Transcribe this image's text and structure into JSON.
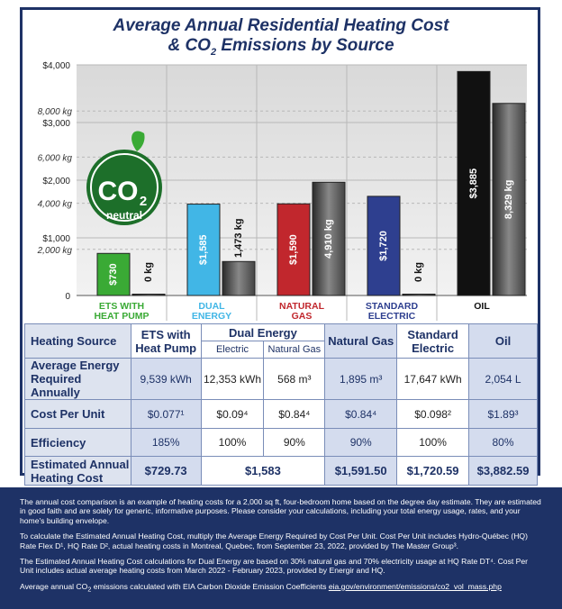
{
  "title": {
    "line1": "Average Annual Residential Heating Cost",
    "line2_prefix": "& CO",
    "line2_sub": "2",
    "line2_suffix": " Emissions by Source"
  },
  "badge": {
    "main": "CO",
    "sub": "2",
    "word": "neutral"
  },
  "colors": {
    "navy": "#1e3266",
    "ets": "#3aaa35",
    "dual": "#41b6e6",
    "gas": "#c1272d",
    "electric": "#2e3f8f",
    "oil": "#111111",
    "emissions": "#555555"
  },
  "chart_data": {
    "type": "bar",
    "title": "Average Annual Residential Heating Cost & CO2 Emissions by Source",
    "left_axis": {
      "ticks": [
        "$4,000",
        "$3,000",
        "$2,000",
        "$1,000",
        "0"
      ],
      "range": [
        0,
        4000
      ],
      "unit": "$"
    },
    "right_axis": {
      "ticks": [
        "8,000 kg",
        "6,000 kg",
        "4,000 kg",
        "2,000 kg"
      ],
      "range": [
        0,
        10000
      ],
      "unit": "kg"
    },
    "categories": [
      {
        "line1": "ETS WITH",
        "line2": "HEAT PUMP",
        "color": "#3aaa35"
      },
      {
        "line1": "DUAL",
        "line2": "ENERGY",
        "color": "#41b6e6"
      },
      {
        "line1": "NATURAL",
        "line2": "GAS",
        "color": "#c1272d"
      },
      {
        "line1": "STANDARD",
        "line2": "ELECTRIC",
        "color": "#2e3f8f"
      },
      {
        "line1": "OIL",
        "line2": "",
        "color": "#111111"
      }
    ],
    "series": [
      {
        "name": "Heating cost",
        "values": [
          730,
          1585,
          1590,
          1720,
          3885
        ],
        "labels": [
          "$730",
          "$1,585",
          "$1,590",
          "$1,720",
          "$3,885"
        ]
      },
      {
        "name": "CO2 emissions",
        "values": [
          0,
          1473,
          4910,
          0,
          8329
        ],
        "labels": [
          "0 kg",
          "1,473 kg",
          "4,910 kg",
          "0 kg",
          "8,329 kg"
        ]
      }
    ]
  },
  "table": {
    "header": {
      "source": "Heating Source",
      "ets": "ETS with Heat Pump",
      "dual": "Dual Energy",
      "dual_elec": "Electric",
      "dual_gas": "Natural Gas",
      "gas": "Natural Gas",
      "std": "Standard Electric",
      "oil": "Oil"
    },
    "rows": [
      {
        "label": "Average Energy Required Annually",
        "cells": [
          "9,539 kWh",
          "12,353 kWh",
          "568 m³",
          "1,895 m³",
          "17,647 kWh",
          "2,054 L"
        ]
      },
      {
        "label": "Cost Per Unit",
        "cells": [
          "$0.077¹",
          "$0.09⁴",
          "$0.84⁴",
          "$0.84⁴",
          "$0.098²",
          "$1.89³"
        ]
      },
      {
        "label": "Efficiency",
        "cells": [
          "185%",
          "100%",
          "90%",
          "90%",
          "100%",
          "80%"
        ]
      }
    ],
    "total": {
      "label": "Estimated Annual Heating Cost",
      "cells": [
        "$729.73",
        "$1,583",
        "$1,591.50",
        "$1,720.59",
        "$3,882.59"
      ]
    }
  },
  "footer": {
    "p1": "The annual cost comparison is an example of heating costs for a 2,000 sq ft, four-bedroom home based on the degree day estimate. They are estimated in good faith and are solely for generic, informative purposes. Please consider your calculations, including your total energy usage, rates, and your home's building envelope.",
    "p2": "To calculate the Estimated Annual Heating Cost, multiply the Average Energy Required by Cost Per Unit. Cost Per Unit includes Hydro-Québec (HQ) Rate Flex D¹, HQ Rate D², actual heating costs in Montreal, Quebec, from September 23, 2022, provided by The Master Group³.",
    "p3": "The Estimated Annual Heating Cost calculations for Dual Energy are based on 30% natural gas and 70% electricity usage at HQ Rate DT⁴. Cost Per Unit includes actual average heating costs from March 2022 - February 2023, provided by Energir and HQ.",
    "p4_prefix": "Average annual CO",
    "p4_sub": "2",
    "p4_mid": " emissions calculated with EIA Carbon Dioxide Emission Coefficients ",
    "p4_link": "eia.gov/environment/emissions/co2_vol_mass.php"
  }
}
